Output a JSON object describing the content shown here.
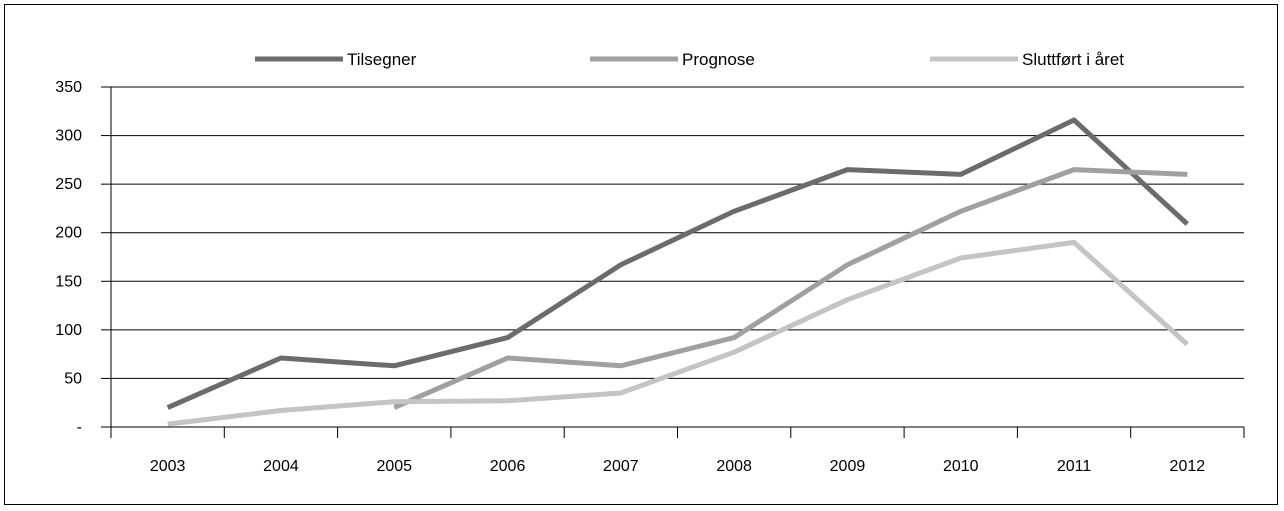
{
  "chart_data": {
    "type": "line",
    "categories": [
      "2003",
      "2004",
      "2005",
      "2006",
      "2007",
      "2008",
      "2009",
      "2010",
      "2011",
      "2012"
    ],
    "series": [
      {
        "name": "Tilsegner",
        "color": "#6b6b6b",
        "values": [
          20,
          71,
          63,
          92,
          167,
          222,
          265,
          260,
          316,
          209
        ]
      },
      {
        "name": "Prognose",
        "color": "#a0a0a0",
        "values": [
          null,
          null,
          20,
          71,
          63,
          92,
          167,
          222,
          265,
          260
        ]
      },
      {
        "name": "Sluttført i året",
        "color": "#c4c4c4",
        "values": [
          3,
          17,
          26,
          27,
          35,
          77,
          131,
          174,
          190,
          85
        ]
      }
    ],
    "y_ticks": [
      {
        "value": 0,
        "label": "-"
      },
      {
        "value": 50,
        "label": "50"
      },
      {
        "value": 100,
        "label": "100"
      },
      {
        "value": 150,
        "label": "150"
      },
      {
        "value": 200,
        "label": "200"
      },
      {
        "value": 250,
        "label": "250"
      },
      {
        "value": 300,
        "label": "300"
      },
      {
        "value": 350,
        "label": "350"
      }
    ],
    "ylim": [
      0,
      350
    ],
    "grid": true,
    "legend_position": "top",
    "title": "",
    "xlabel": "",
    "ylabel": ""
  }
}
